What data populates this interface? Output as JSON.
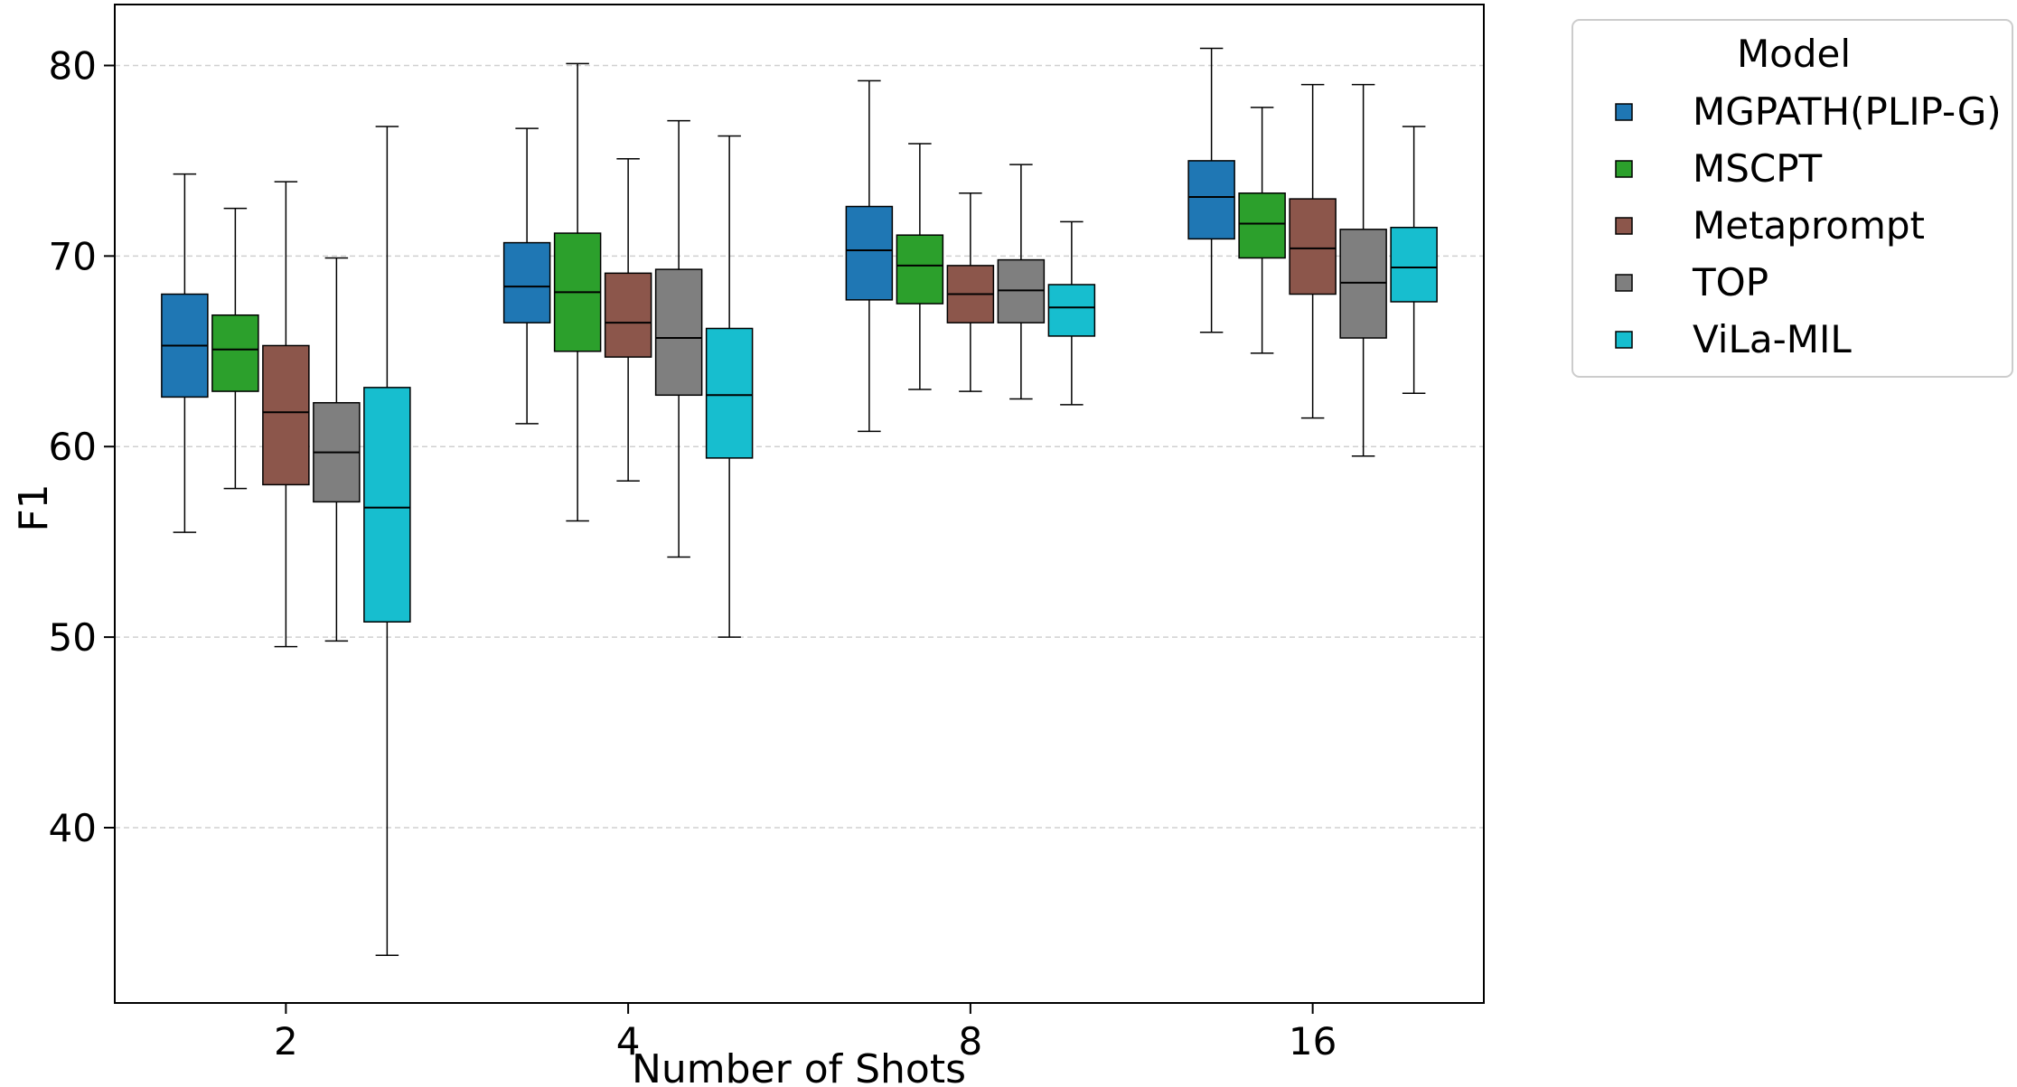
{
  "chart_data": {
    "type": "boxplot",
    "title": "",
    "xlabel": "Number of Shots",
    "ylabel": "F1",
    "ylim": [
      30.8,
      83.2
    ],
    "yticks": [
      40,
      50,
      60,
      70,
      80
    ],
    "grid": "horizontal-dashed",
    "legend": {
      "title": "Model",
      "placement": "outside-top-right"
    },
    "categories": [
      "2",
      "4",
      "8",
      "16"
    ],
    "series": [
      {
        "name": "MGPATH(PLIP-G)",
        "color": "#1f77b4",
        "boxes": [
          {
            "whislo": 55.5,
            "q1": 62.6,
            "med": 65.3,
            "q3": 68.0,
            "whishi": 74.3
          },
          {
            "whislo": 61.2,
            "q1": 66.5,
            "med": 68.4,
            "q3": 70.7,
            "whishi": 76.7
          },
          {
            "whislo": 60.8,
            "q1": 67.7,
            "med": 70.3,
            "q3": 72.6,
            "whishi": 79.2
          },
          {
            "whislo": 66.0,
            "q1": 70.9,
            "med": 73.1,
            "q3": 75.0,
            "whishi": 80.9
          }
        ]
      },
      {
        "name": "MSCPT",
        "color": "#2ca02c",
        "boxes": [
          {
            "whislo": 57.8,
            "q1": 62.9,
            "med": 65.1,
            "q3": 66.9,
            "whishi": 72.5
          },
          {
            "whislo": 56.1,
            "q1": 65.0,
            "med": 68.1,
            "q3": 71.2,
            "whishi": 80.1
          },
          {
            "whislo": 63.0,
            "q1": 67.5,
            "med": 69.5,
            "q3": 71.1,
            "whishi": 75.9
          },
          {
            "whislo": 64.9,
            "q1": 69.9,
            "med": 71.7,
            "q3": 73.3,
            "whishi": 77.8
          }
        ]
      },
      {
        "name": "Metaprompt",
        "color": "#8c564b",
        "boxes": [
          {
            "whislo": 49.5,
            "q1": 58.0,
            "med": 61.8,
            "q3": 65.3,
            "whishi": 73.9
          },
          {
            "whislo": 58.2,
            "q1": 64.7,
            "med": 66.5,
            "q3": 69.1,
            "whishi": 75.1
          },
          {
            "whislo": 62.9,
            "q1": 66.5,
            "med": 68.0,
            "q3": 69.5,
            "whishi": 73.3
          },
          {
            "whislo": 61.5,
            "q1": 68.0,
            "med": 70.4,
            "q3": 73.0,
            "whishi": 79.0
          }
        ]
      },
      {
        "name": "TOP",
        "color": "#7f7f7f",
        "boxes": [
          {
            "whislo": 49.8,
            "q1": 57.1,
            "med": 59.7,
            "q3": 62.3,
            "whishi": 69.9
          },
          {
            "whislo": 54.2,
            "q1": 62.7,
            "med": 65.7,
            "q3": 69.3,
            "whishi": 77.1
          },
          {
            "whislo": 62.5,
            "q1": 66.5,
            "med": 68.2,
            "q3": 69.8,
            "whishi": 74.8
          },
          {
            "whislo": 59.5,
            "q1": 65.7,
            "med": 68.6,
            "q3": 71.4,
            "whishi": 79.0
          }
        ]
      },
      {
        "name": "ViLa-MIL",
        "color": "#17becf",
        "boxes": [
          {
            "whislo": 33.3,
            "q1": 50.8,
            "med": 56.8,
            "q3": 63.1,
            "whishi": 76.8
          },
          {
            "whislo": 50.0,
            "q1": 59.4,
            "med": 62.7,
            "q3": 66.2,
            "whishi": 76.3
          },
          {
            "whislo": 62.2,
            "q1": 65.8,
            "med": 67.3,
            "q3": 68.5,
            "whishi": 71.8
          },
          {
            "whislo": 62.8,
            "q1": 67.6,
            "med": 69.4,
            "q3": 71.5,
            "whishi": 76.8
          }
        ]
      }
    ]
  }
}
